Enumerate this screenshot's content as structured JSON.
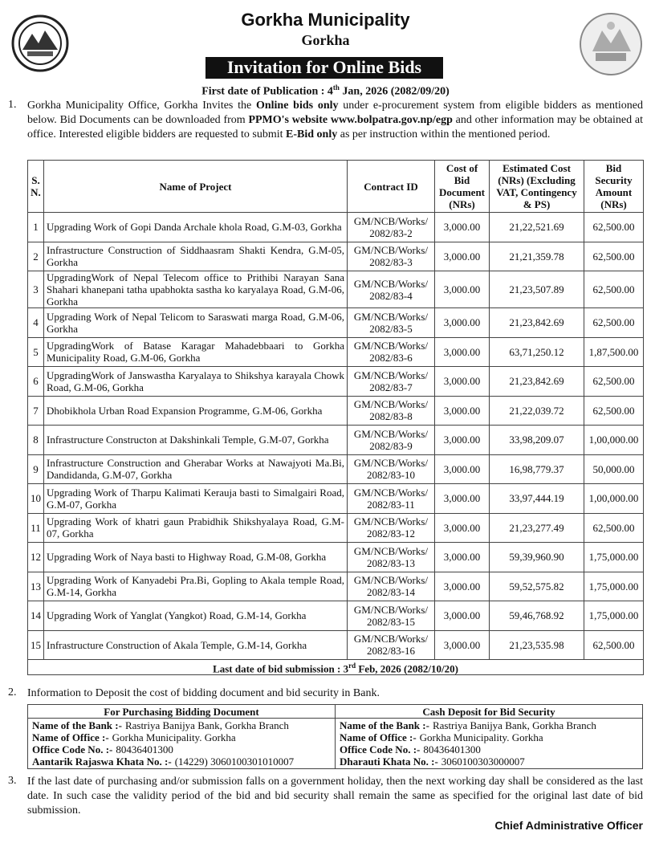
{
  "header": {
    "title": "Gorkha Municipality",
    "subtitle": "Gorkha",
    "heading": "Invitation for Online Bids",
    "publication": [
      "First date of Publication : 4",
      "th",
      " Jan, 2026 (2082/09/20)"
    ]
  },
  "item1": {
    "number": "1.",
    "segments": [
      "Gorkha Municipality Office, Gorkha Invites the ",
      "Online bids only",
      " under e-procurement system from eligible bidders as mentioned below. Bid Documents can be downloaded from ",
      "PPMO's website www.bolpatra.gov.np/egp",
      " and other information may be obtained at office. Interested eligible bidders are requested to submit ",
      "E-Bid only",
      " as per instruction within the mentioned period."
    ]
  },
  "table": {
    "headers": [
      "S. N.",
      "Name of Project",
      "Contract ID",
      "Cost of Bid Document (NRs)",
      "Estimated Cost (NRs) (Excluding VAT, Contingency & PS)",
      "Bid Security Amount (NRs)"
    ],
    "rows": [
      [
        "1",
        "Upgrading Work of Gopi Danda Archale khola Road, G.M-03, Gorkha",
        "GM/NCB/Works/ 2082/83-2",
        "3,000.00",
        "21,22,521.69",
        "62,500.00"
      ],
      [
        "2",
        "Infrastructure Construction of Siddhaasram Shakti Kendra, G.M-05, Gorkha",
        "GM/NCB/Works/ 2082/83-3",
        "3,000.00",
        "21,21,359.78",
        "62,500.00"
      ],
      [
        "3",
        "UpgradingWork of Nepal Telecom office to Prithibi Narayan Sana Shahari khanepani tatha upabhokta sastha ko karyalaya Road, G.M-06, Gorkha",
        "GM/NCB/Works/ 2082/83-4",
        "3,000.00",
        "21,23,507.89",
        "62,500.00"
      ],
      [
        "4",
        "Upgrading Work of Nepal Telicom to Saraswati marga Road, G.M-06, Gorkha",
        "GM/NCB/Works/ 2082/83-5",
        "3,000.00",
        "21,23,842.69",
        "62,500.00"
      ],
      [
        "5",
        "UpgradingWork of Batase Karagar Mahadebbaari to Gorkha Municipality Road, G.M-06, Gorkha",
        "GM/NCB/Works/ 2082/83-6",
        "3,000.00",
        "63,71,250.12",
        "1,87,500.00"
      ],
      [
        "6",
        "UpgradingWork of Janswastha Karyalaya to Shikshya karayala Chowk Road, G.M-06, Gorkha",
        "GM/NCB/Works/ 2082/83-7",
        "3,000.00",
        "21,23,842.69",
        "62,500.00"
      ],
      [
        "7",
        "Dhobikhola Urban Road Expansion Programme, G.M-06, Gorkha",
        "GM/NCB/Works/ 2082/83-8",
        "3,000.00",
        "21,22,039.72",
        "62,500.00"
      ],
      [
        "8",
        "Infrastructure Constructon at Dakshinkali Temple, G.M-07, Gorkha",
        "GM/NCB/Works/ 2082/83-9",
        "3,000.00",
        "33,98,209.07",
        "1,00,000.00"
      ],
      [
        "9",
        "Infrastructure Construction and Gherabar Works at Nawajyoti Ma.Bi, Dandidanda, G.M-07, Gorkha",
        "GM/NCB/Works/ 2082/83-10",
        "3,000.00",
        "16,98,779.37",
        "50,000.00"
      ],
      [
        "10",
        "Upgrading Work of Tharpu Kalimati Kerauja basti to Simalgairi Road, G.M-07, Gorkha",
        "GM/NCB/Works/ 2082/83-11",
        "3,000.00",
        "33,97,444.19",
        "1,00,000.00"
      ],
      [
        "11",
        "Upgrading Work of khatri gaun Prabidhik Shikshyalaya Road, G.M-07, Gorkha",
        "GM/NCB/Works/ 2082/83-12",
        "3,000.00",
        "21,23,277.49",
        "62,500.00"
      ],
      [
        "12",
        "Upgrading Work of Naya basti to Highway Road, G.M-08, Gorkha",
        "GM/NCB/Works/ 2082/83-13",
        "3,000.00",
        "59,39,960.90",
        "1,75,000.00"
      ],
      [
        "13",
        "Upgrading Work of Kanyadebi Pra.Bi, Gopling to Akala temple Road, G.M-14, Gorkha",
        "GM/NCB/Works/ 2082/83-14",
        "3,000.00",
        "59,52,575.82",
        "1,75,000.00"
      ],
      [
        "14",
        "Upgrading Work of Yanglat (Yangkot) Road, G.M-14, Gorkha",
        "GM/NCB/Works/ 2082/83-15",
        "3,000.00",
        "59,46,768.92",
        "1,75,000.00"
      ],
      [
        "15",
        "Infrastructure Construction of Akala Temple, G.M-14, Gorkha",
        "GM/NCB/Works/ 2082/83-16",
        "3,000.00",
        "21,23,535.98",
        "62,500.00"
      ]
    ],
    "footer": [
      "Last date of bid submission : 3",
      "rd",
      " Feb, 2026 (2082/10/20)"
    ]
  },
  "item2": {
    "number": "2.",
    "text": "Information to Deposit the cost of bidding document and bid security in Bank.",
    "columns": [
      {
        "heading": "For Purchasing Bidding Document",
        "lines": [
          [
            "Name of the Bank :-",
            "Rastriya Banijya Bank, Gorkha Branch"
          ],
          [
            "Name of Office :-",
            "Gorkha Municipality. Gorkha"
          ],
          [
            "Office Code No. :-",
            "80436401300"
          ],
          [
            "Aantarik Rajaswa Khata No. :-",
            "(14229) 3060100301010007"
          ]
        ]
      },
      {
        "heading": "Cash Deposit for Bid Security",
        "lines": [
          [
            "Name of the Bank :-",
            "Rastriya Banijya Bank, Gorkha Branch"
          ],
          [
            "Name of Office :-",
            "Gorkha Municipality. Gorkha"
          ],
          [
            "Office Code No. :-",
            "80436401300"
          ],
          [
            "Dharauti Khata No. :-",
            "3060100303000007"
          ]
        ]
      }
    ]
  },
  "item3": {
    "number": "3.",
    "text": "If the last date of purchasing and/or submission falls on a government holiday, then the next working day shall be considered as the last date. In such case the validity period of the bid and bid security shall remain the same as specified for the original last date of bid submission."
  },
  "signature": "Chief Administrative Officer"
}
